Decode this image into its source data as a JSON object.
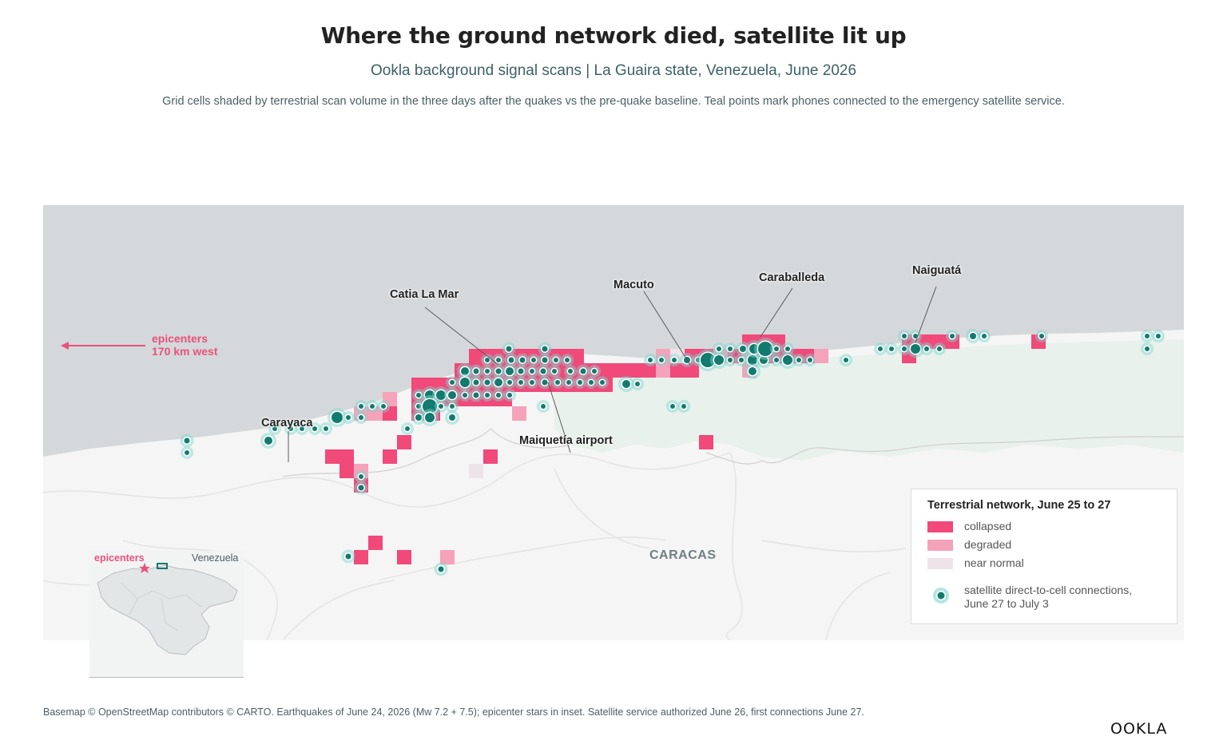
{
  "title": "Where the ground network died, satellite lit up",
  "subtitle": "Ookla background signal scans | La Guaira state, Venezuela, June 2026",
  "description": "Grid cells shaded by terrestrial scan volume in the three days after the quakes vs the pre-quake baseline. Teal points mark phones connected to the emergency satellite service.",
  "map": {
    "place_labels": {
      "catia": "Catia La Mar",
      "macuto": "Macuto",
      "caraballeda": "Caraballeda",
      "naiguata": "Naiguatá",
      "carayaca": "Carayaca",
      "airport": "Maiquetía airport",
      "caracas": "CARACAS"
    },
    "epicenter_note_line1": "epicenters",
    "epicenter_note_line2": "170 km west",
    "colors": {
      "sea": "#d5d8da",
      "land": "#f5f5f5",
      "park": "#e8f1ec",
      "collapsed": "#f0497a",
      "degraded": "#f5a2bb",
      "near_normal": "#efe3ea",
      "satellite": "#127a6e",
      "satellite_halo": "#7fd6cb"
    }
  },
  "legend": {
    "title": "Terrestrial network, June 25 to 27",
    "collapsed": "collapsed",
    "degraded": "degraded",
    "near_normal": "near normal",
    "satellite_line1": "satellite direct-to-cell connections,",
    "satellite_line2": "June 27 to July 3"
  },
  "inset": {
    "epicenters": "epicenters",
    "country": "Venezuela"
  },
  "footer": "Basemap © OpenStreetMap contributors © CARTO. Earthquakes of June 24, 2026 (Mw 7.2 + 7.5); epicenter stars in inset. Satellite service authorized June 26, first connections June 27.",
  "logo": "OOKLA"
}
